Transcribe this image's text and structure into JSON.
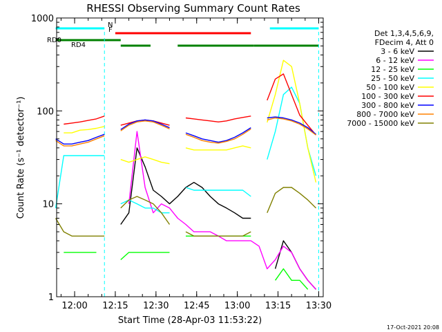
{
  "chart_data": {
    "type": "line",
    "title": "RHESSI Observing Summary Count Rates",
    "xlabel": "Start Time (28-Apr-03 11:53:22)",
    "ylabel": "Count Rate (s⁻¹ detector⁻¹)",
    "y_scale": "log",
    "ylim": [
      1,
      1000
    ],
    "xlim": [
      "11:53:22",
      "13:31:40"
    ],
    "x_tick_labels": [
      "12:00",
      "12:15",
      "12:30",
      "12:45",
      "13:00",
      "13:15",
      "13:30"
    ],
    "y_tick_labels": [
      "1",
      "10",
      "100",
      "1000"
    ],
    "legend_header": [
      "Det 1,3,4,5,6,9,",
      "FDecim 4, Att 0"
    ],
    "legend_position": "right",
    "footer_date": "17-Oct-2021 20:08",
    "flags": [
      {
        "label": "N",
        "color": "#00ffff",
        "segments": [
          [
            "11:53",
            "12:11"
          ],
          [
            "13:12",
            "13:30"
          ]
        ]
      },
      {
        "label": "F",
        "color": "#ff0000",
        "segments": [
          [
            "12:15",
            "13:05"
          ]
        ]
      },
      {
        "label": "RD0",
        "color": "#008000",
        "segments": [
          [
            "11:53",
            "12:17"
          ]
        ]
      },
      {
        "label": "RD4",
        "color": "#008000",
        "segments": [
          [
            "12:17",
            "12:28"
          ],
          [
            "12:38",
            "13:06"
          ],
          [
            "13:06",
            "13:30"
          ]
        ]
      }
    ],
    "night_markers": [
      "12:11",
      "13:30"
    ],
    "x_times": [
      "11:53",
      "11:56",
      "11:59",
      "12:02",
      "12:05",
      "12:08",
      "12:11",
      "12:14",
      "12:17",
      "12:20",
      "12:23",
      "12:26",
      "12:29",
      "12:32",
      "12:35",
      "12:38",
      "12:41",
      "12:44",
      "12:47",
      "12:50",
      "12:53",
      "12:56",
      "12:59",
      "13:02",
      "13:05",
      "13:08",
      "13:11",
      "13:14",
      "13:17",
      "13:20",
      "13:23",
      "13:26",
      "13:29",
      "13:31"
    ],
    "series": [
      {
        "name": "3 - 6 keV",
        "color": "#000000",
        "values": [
          null,
          null,
          null,
          null,
          null,
          null,
          null,
          null,
          6,
          8,
          40,
          25,
          14,
          12,
          10,
          12,
          15,
          17,
          15,
          12,
          10,
          9,
          8,
          7,
          7,
          null,
          null,
          2,
          4,
          3,
          2,
          1.5,
          1.2,
          null
        ]
      },
      {
        "name": "6 - 12 keV",
        "color": "#ff00ff",
        "values": [
          null,
          null,
          null,
          null,
          null,
          null,
          null,
          null,
          null,
          10,
          60,
          15,
          8,
          10,
          9,
          7,
          6,
          5,
          5,
          5,
          4.5,
          4,
          4,
          4,
          4,
          3.5,
          2,
          2.5,
          3.5,
          3,
          2,
          1.5,
          1.2,
          null
        ]
      },
      {
        "name": "12 - 25 keV",
        "color": "#00ff00",
        "values": [
          null,
          3,
          3,
          3,
          3,
          3,
          null,
          null,
          2.5,
          3,
          3,
          3,
          3,
          3,
          3,
          null,
          4.5,
          4.5,
          4.5,
          4.5,
          4.5,
          4.5,
          4.5,
          4.5,
          4.5,
          null,
          null,
          1.5,
          2,
          1.5,
          1.5,
          1.2,
          null,
          null
        ]
      },
      {
        "name": "25 - 50 keV",
        "color": "#00ffff",
        "values": [
          9,
          33,
          33,
          33,
          33,
          33,
          33,
          null,
          10,
          11,
          10,
          9,
          9,
          8,
          8,
          null,
          15,
          14,
          14,
          14,
          14,
          14,
          14,
          14,
          12,
          null,
          30,
          60,
          150,
          180,
          120,
          40,
          20,
          null
        ]
      },
      {
        "name": "50 - 100 keV",
        "color": "#ffff00",
        "values": [
          null,
          58,
          58,
          62,
          63,
          65,
          68,
          null,
          30,
          28,
          30,
          32,
          30,
          28,
          27,
          null,
          40,
          38,
          38,
          38,
          38,
          38,
          40,
          42,
          40,
          null,
          75,
          150,
          350,
          300,
          120,
          40,
          17,
          null
        ]
      },
      {
        "name": "100 - 300 keV",
        "color": "#ff0000",
        "values": [
          null,
          72,
          74,
          76,
          79,
          82,
          88,
          null,
          70,
          74,
          78,
          80,
          78,
          74,
          70,
          null,
          84,
          82,
          80,
          78,
          76,
          78,
          82,
          85,
          88,
          null,
          130,
          220,
          250,
          150,
          90,
          70,
          55,
          null
        ]
      },
      {
        "name": "300 - 800 keV",
        "color": "#0000ff",
        "values": [
          50,
          44,
          44,
          46,
          48,
          52,
          56,
          null,
          63,
          72,
          78,
          80,
          78,
          72,
          66,
          null,
          58,
          54,
          50,
          48,
          46,
          48,
          52,
          58,
          66,
          null,
          84,
          86,
          84,
          80,
          74,
          66,
          56,
          null
        ]
      },
      {
        "name": "800 - 7000 keV",
        "color": "#ff8000",
        "values": [
          48,
          42,
          42,
          44,
          46,
          50,
          54,
          null,
          61,
          70,
          76,
          78,
          76,
          70,
          64,
          null,
          56,
          52,
          48,
          46,
          45,
          47,
          50,
          56,
          64,
          null,
          80,
          84,
          82,
          78,
          72,
          64,
          55,
          null
        ]
      },
      {
        "name": "7000 - 15000 keV",
        "color": "#808000",
        "values": [
          7,
          5,
          4.5,
          4.5,
          4.5,
          4.5,
          4.5,
          null,
          9,
          11,
          12,
          11,
          10,
          8,
          6,
          null,
          5,
          4.5,
          4.5,
          4.5,
          4.5,
          4.5,
          4.5,
          4.5,
          5,
          null,
          8,
          13,
          15,
          15,
          13,
          11,
          9,
          null
        ]
      }
    ]
  }
}
